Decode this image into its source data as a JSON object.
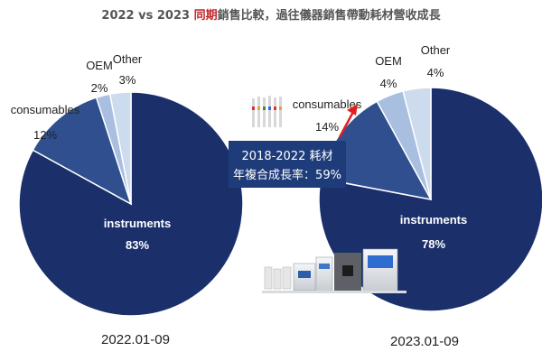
{
  "title": {
    "prefix": "2022 vs 2023 ",
    "highlight": "同期",
    "suffix": "銷售比較，過往儀器銷售帶動耗材營收成長"
  },
  "callout": {
    "line1": "2018-2022 耗材",
    "line2": "年複合成長率：59%"
  },
  "colors": {
    "instruments": "#1b2f6b",
    "consumables": "#2f4f8f",
    "oem": "#a9bfe0",
    "other": "#cddbee",
    "callout_bg": "#1f3c7a",
    "arrow": "#e02020",
    "highlight": "#c0262c"
  },
  "chart_data": [
    {
      "type": "pie",
      "period": "2022.01-09",
      "slices": [
        {
          "name": "instruments",
          "value": 83,
          "label": "83%"
        },
        {
          "name": "consumables",
          "value": 12,
          "label": "12%"
        },
        {
          "name": "OEM",
          "value": 2,
          "label": "2%"
        },
        {
          "name": "Other",
          "value": 3,
          "label": "3%"
        }
      ]
    },
    {
      "type": "pie",
      "period": "2023.01-09",
      "slices": [
        {
          "name": "instruments",
          "value": 78,
          "label": "78%"
        },
        {
          "name": "consumables",
          "value": 14,
          "label": "14%"
        },
        {
          "name": "OEM",
          "value": 4,
          "label": "4%"
        },
        {
          "name": "Other",
          "value": 4,
          "label": "4%"
        }
      ]
    }
  ]
}
